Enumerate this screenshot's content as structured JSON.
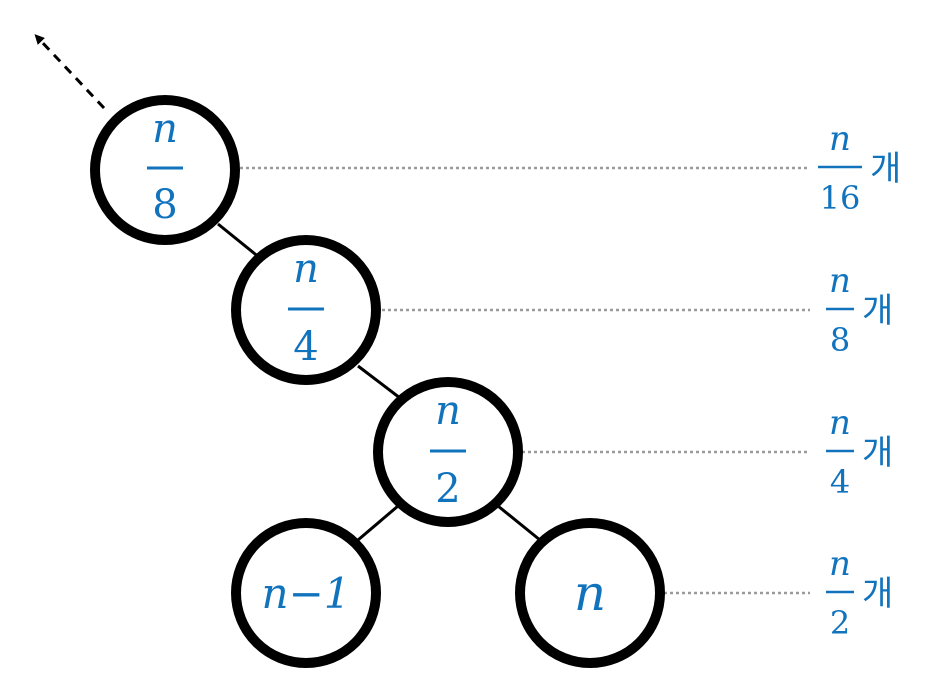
{
  "nodes": [
    {
      "id": "n8",
      "num": "n",
      "den": "8"
    },
    {
      "id": "n4",
      "num": "n",
      "den": "4"
    },
    {
      "id": "n2",
      "num": "n",
      "den": "2"
    },
    {
      "id": "nminus1",
      "label": "n−1"
    },
    {
      "id": "n",
      "label": "n"
    }
  ],
  "levels": [
    {
      "num": "n",
      "den": "16",
      "unit": "개"
    },
    {
      "num": "n",
      "den": "8",
      "unit": "개"
    },
    {
      "num": "n",
      "den": "4",
      "unit": "개"
    },
    {
      "num": "n",
      "den": "2",
      "unit": "개"
    }
  ],
  "colors": {
    "text": "#1273bd",
    "stroke": "#000000",
    "guide": "#9a9a9a"
  }
}
